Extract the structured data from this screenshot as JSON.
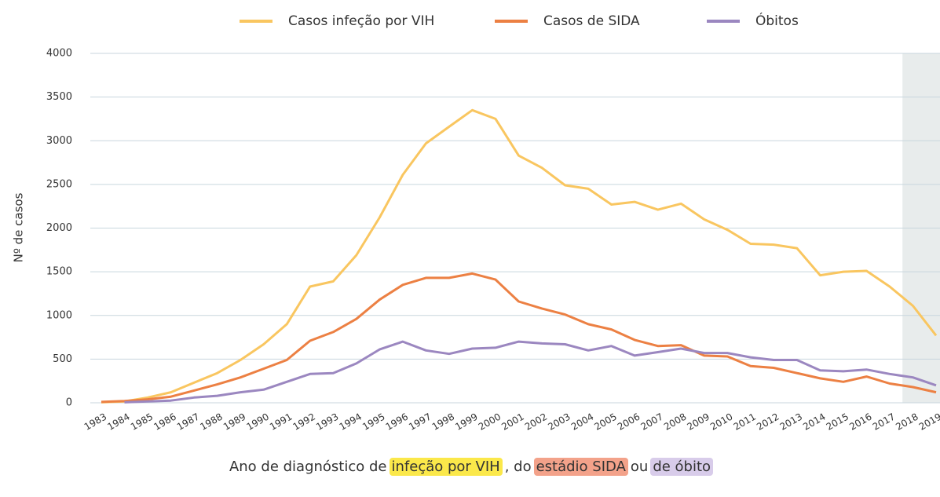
{
  "chart_data": {
    "type": "line",
    "ylabel": "Nº de casos",
    "xlabel_parts": [
      "Ano  de diagnóstico de",
      "infeção por VIH",
      ", do",
      "estádio SIDA",
      "ou",
      "de óbito"
    ],
    "categories": [
      "1983",
      "1984",
      "1985",
      "1986",
      "1987",
      "1988",
      "1989",
      "1990",
      "1991",
      "1992",
      "1993",
      "1994",
      "1995",
      "1996",
      "1997",
      "1998",
      "1999",
      "2000",
      "2001",
      "2002",
      "2003",
      "2004",
      "2005",
      "2006",
      "2007",
      "2008",
      "2009",
      "2010",
      "2011",
      "2012",
      "2013",
      "2014",
      "2015",
      "2016",
      "2017",
      "2018",
      "2019"
    ],
    "series": [
      {
        "name": "Casos infeção por VIH",
        "color": "#f9c660",
        "values": [
          5,
          15,
          60,
          120,
          230,
          340,
          490,
          670,
          900,
          1330,
          1390,
          1690,
          2120,
          2610,
          2970,
          3160,
          3350,
          3250,
          2830,
          2690,
          2490,
          2450,
          2270,
          2300,
          2210,
          2280,
          2100,
          1980,
          1820,
          1810,
          1770,
          1460,
          1500,
          1510,
          1330,
          1110,
          770
        ]
      },
      {
        "name": "Casos de SIDA",
        "color": "#ec8043",
        "values": [
          10,
          20,
          40,
          70,
          140,
          210,
          290,
          390,
          490,
          710,
          810,
          960,
          1180,
          1350,
          1430,
          1430,
          1480,
          1410,
          1160,
          1080,
          1010,
          900,
          840,
          720,
          650,
          660,
          540,
          530,
          420,
          400,
          340,
          280,
          240,
          300,
          220,
          180,
          120
        ]
      },
      {
        "name": "Óbitos",
        "color": "#9b87c0",
        "values": [
          null,
          5,
          15,
          25,
          60,
          80,
          120,
          150,
          240,
          330,
          340,
          450,
          610,
          700,
          600,
          560,
          620,
          630,
          700,
          680,
          670,
          600,
          650,
          540,
          580,
          620,
          570,
          570,
          520,
          490,
          490,
          370,
          360,
          380,
          330,
          290,
          200
        ]
      }
    ],
    "ylim": [
      0,
      4000
    ],
    "yticks": [
      0,
      500,
      1000,
      1500,
      2000,
      2500,
      3000,
      3500,
      4000
    ],
    "grid": true
  }
}
